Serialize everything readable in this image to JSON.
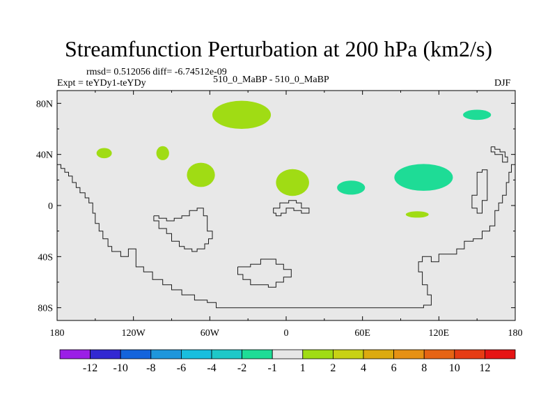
{
  "header": {
    "title": "Streamfunction Perturbation at 200 hPa (km2/s)",
    "stats": "rmsd= 0.512056 diff= -6.74512e-09",
    "expt": "Expt = teYDy1-teYDy",
    "case": "510_0_MaBP - 510_0_MaBP",
    "season": "DJF"
  },
  "chart_data": {
    "type": "heatmap",
    "projection": "cylindrical-equidistant",
    "xlim": [
      -180,
      180
    ],
    "ylim": [
      -90,
      90
    ],
    "x_ticks": [
      {
        "value": -180,
        "label": "180"
      },
      {
        "value": -120,
        "label": "120W"
      },
      {
        "value": -60,
        "label": "60W"
      },
      {
        "value": 0,
        "label": "0"
      },
      {
        "value": 60,
        "label": "60E"
      },
      {
        "value": 120,
        "label": "120E"
      },
      {
        "value": 180,
        "label": "180"
      }
    ],
    "y_ticks": [
      {
        "value": 80,
        "label": "80N"
      },
      {
        "value": 40,
        "label": "40N"
      },
      {
        "value": 0,
        "label": "0"
      },
      {
        "value": -40,
        "label": "40S"
      },
      {
        "value": -80,
        "label": "80S"
      }
    ],
    "background_color": "#e8e8e8",
    "colorbar": {
      "colors": [
        "#9b1ee6",
        "#3228d2",
        "#1464dc",
        "#1e96dc",
        "#19bede",
        "#1ec8c8",
        "#1edc96",
        "#e6e6e6",
        "#a0dc14",
        "#c8d214",
        "#dcaa0f",
        "#e69114",
        "#e66414",
        "#e63c14",
        "#e61414"
      ],
      "labels": [
        "-12",
        "-10",
        "-8",
        "-6",
        "-4",
        "-2",
        "-1",
        "1",
        "2",
        "4",
        "6",
        "8",
        "10",
        "12"
      ]
    },
    "anomalies": [
      {
        "lon": -35,
        "lat": 71,
        "rlon": 23,
        "rlat": 11,
        "value": 2,
        "color": "#a0dc14"
      },
      {
        "lon": -143,
        "lat": 41,
        "rlon": 6,
        "rlat": 4,
        "value": 2,
        "color": "#a0dc14"
      },
      {
        "lon": -97,
        "lat": 41,
        "rlon": 5,
        "rlat": 5.5,
        "value": 2,
        "color": "#a0dc14"
      },
      {
        "lon": -67,
        "lat": 24,
        "rlon": 11,
        "rlat": 9.5,
        "value": 2,
        "color": "#a0dc14"
      },
      {
        "lon": 5,
        "lat": 18,
        "rlon": 13,
        "rlat": 10.5,
        "value": 2,
        "color": "#a0dc14"
      },
      {
        "lon": 103,
        "lat": -7,
        "rlon": 9,
        "rlat": 2.5,
        "value": 2,
        "color": "#a0dc14"
      },
      {
        "lon": 150,
        "lat": 71,
        "rlon": 11,
        "rlat": 4,
        "value": -1,
        "color": "#1edc96"
      },
      {
        "lon": 51,
        "lat": 14,
        "rlon": 11,
        "rlat": 5.5,
        "value": -1,
        "color": "#1edc96"
      },
      {
        "lon": 108,
        "lat": 22,
        "rlon": 23,
        "rlat": 10.5,
        "value": -1,
        "color": "#1edc96"
      }
    ],
    "outlines": [
      [
        [
          -180,
          32
        ],
        [
          -177,
          32
        ],
        [
          -177,
          29
        ],
        [
          -174,
          29
        ],
        [
          -174,
          26
        ],
        [
          -171,
          26
        ],
        [
          -171,
          23
        ],
        [
          -168,
          23
        ],
        [
          -168,
          18
        ],
        [
          -165,
          18
        ],
        [
          -165,
          14
        ],
        [
          -162,
          14
        ],
        [
          -162,
          10
        ],
        [
          -158,
          10
        ],
        [
          -158,
          6
        ],
        [
          -155,
          6
        ],
        [
          -155,
          2
        ],
        [
          -152,
          2
        ],
        [
          -152,
          -6
        ],
        [
          -150,
          -6
        ],
        [
          -150,
          -14
        ],
        [
          -147,
          -14
        ],
        [
          -147,
          -20
        ],
        [
          -144,
          -20
        ],
        [
          -144,
          -26
        ],
        [
          -140,
          -26
        ],
        [
          -140,
          -32
        ],
        [
          -137,
          -32
        ],
        [
          -137,
          -36
        ],
        [
          -130,
          -36
        ],
        [
          -130,
          -40
        ],
        [
          -124,
          -40
        ],
        [
          -124,
          -34
        ],
        [
          -118,
          -34
        ],
        [
          -118,
          -40
        ],
        [
          -118,
          -48
        ],
        [
          -112,
          -48
        ],
        [
          -112,
          -52
        ],
        [
          -105,
          -52
        ],
        [
          -105,
          -58
        ],
        [
          -97,
          -58
        ],
        [
          -97,
          -62
        ],
        [
          -90,
          -62
        ],
        [
          -90,
          -66
        ],
        [
          -82,
          -66
        ],
        [
          -82,
          -70
        ],
        [
          -72,
          -70
        ],
        [
          -72,
          -74
        ],
        [
          -62,
          -74
        ],
        [
          -62,
          -76
        ],
        [
          -55,
          -76
        ],
        [
          -55,
          -80
        ],
        [
          -45,
          -80
        ],
        [
          -20,
          -80
        ],
        [
          20,
          -80
        ],
        [
          70,
          -80
        ],
        [
          108,
          -80
        ],
        [
          108,
          -78
        ],
        [
          114,
          -78
        ],
        [
          114,
          -70
        ],
        [
          111,
          -70
        ],
        [
          111,
          -62
        ],
        [
          107,
          -62
        ],
        [
          107,
          -52
        ],
        [
          104,
          -52
        ],
        [
          104,
          -44
        ],
        [
          107,
          -44
        ],
        [
          107,
          -40
        ],
        [
          114,
          -40
        ],
        [
          114,
          -44
        ],
        [
          120,
          -44
        ],
        [
          120,
          -38
        ],
        [
          134,
          -38
        ],
        [
          134,
          -34
        ],
        [
          140,
          -34
        ],
        [
          140,
          -28
        ],
        [
          147,
          -28
        ],
        [
          147,
          -26
        ],
        [
          154,
          -26
        ],
        [
          154,
          -20
        ],
        [
          160,
          -20
        ],
        [
          160,
          -16
        ],
        [
          164,
          -16
        ],
        [
          164,
          -4
        ],
        [
          167,
          -4
        ],
        [
          167,
          2
        ],
        [
          170,
          2
        ],
        [
          170,
          8
        ],
        [
          173,
          8
        ],
        [
          173,
          18
        ],
        [
          175,
          18
        ],
        [
          175,
          26
        ],
        [
          177,
          26
        ],
        [
          177,
          32
        ],
        [
          180,
          32
        ]
      ],
      [
        [
          -104,
          -8
        ],
        [
          -104,
          -12
        ],
        [
          -100,
          -12
        ],
        [
          -100,
          -18
        ],
        [
          -94,
          -18
        ],
        [
          -94,
          -22
        ],
        [
          -90,
          -22
        ],
        [
          -90,
          -28
        ],
        [
          -84,
          -28
        ],
        [
          -84,
          -32
        ],
        [
          -80,
          -32
        ],
        [
          -80,
          -34
        ],
        [
          -74,
          -34
        ],
        [
          -74,
          -36
        ],
        [
          -70,
          -36
        ],
        [
          -70,
          -34
        ],
        [
          -64,
          -34
        ],
        [
          -64,
          -30
        ],
        [
          -61,
          -30
        ],
        [
          -61,
          -26
        ],
        [
          -58,
          -26
        ],
        [
          -58,
          -20
        ],
        [
          -62,
          -20
        ],
        [
          -62,
          -8
        ],
        [
          -65,
          -8
        ],
        [
          -65,
          -2
        ],
        [
          -70,
          -2
        ],
        [
          -70,
          -4
        ],
        [
          -76,
          -4
        ],
        [
          -76,
          -8
        ],
        [
          -82,
          -8
        ],
        [
          -82,
          -10
        ],
        [
          -88,
          -10
        ],
        [
          -88,
          -12
        ],
        [
          -94,
          -12
        ],
        [
          -94,
          -10
        ],
        [
          -100,
          -10
        ],
        [
          -100,
          -8
        ],
        [
          -104,
          -8
        ]
      ],
      [
        [
          -10,
          -6
        ],
        [
          -10,
          -2
        ],
        [
          -5,
          -2
        ],
        [
          -5,
          2
        ],
        [
          2,
          2
        ],
        [
          2,
          4
        ],
        [
          8,
          4
        ],
        [
          8,
          2
        ],
        [
          12,
          2
        ],
        [
          12,
          -2
        ],
        [
          18,
          -2
        ],
        [
          18,
          -6
        ],
        [
          12,
          -6
        ],
        [
          12,
          -4
        ],
        [
          6,
          -4
        ],
        [
          6,
          -2
        ],
        [
          0,
          -2
        ],
        [
          0,
          -6
        ],
        [
          -4,
          -6
        ],
        [
          -4,
          -8
        ],
        [
          -8,
          -8
        ],
        [
          -8,
          -6
        ],
        [
          -10,
          -6
        ]
      ],
      [
        [
          -38,
          -48
        ],
        [
          -38,
          -54
        ],
        [
          -34,
          -54
        ],
        [
          -34,
          -58
        ],
        [
          -28,
          -58
        ],
        [
          -28,
          -62
        ],
        [
          -14,
          -62
        ],
        [
          -14,
          -64
        ],
        [
          -8,
          -64
        ],
        [
          -8,
          -60
        ],
        [
          -2,
          -60
        ],
        [
          -2,
          -56
        ],
        [
          4,
          -56
        ],
        [
          4,
          -50
        ],
        [
          -2,
          -50
        ],
        [
          -2,
          -46
        ],
        [
          -8,
          -46
        ],
        [
          -8,
          -42
        ],
        [
          -20,
          -42
        ],
        [
          -20,
          -46
        ],
        [
          -28,
          -46
        ],
        [
          -28,
          -48
        ],
        [
          -38,
          -48
        ]
      ],
      [
        [
          150,
          16
        ],
        [
          150,
          8
        ],
        [
          146,
          8
        ],
        [
          146,
          -2
        ],
        [
          150,
          -2
        ],
        [
          150,
          -6
        ],
        [
          154,
          -6
        ],
        [
          154,
          4
        ],
        [
          158,
          4
        ],
        [
          158,
          28
        ],
        [
          154,
          28
        ],
        [
          154,
          26
        ],
        [
          150,
          26
        ],
        [
          150,
          16
        ]
      ],
      [
        [
          161,
          46
        ],
        [
          161,
          42
        ],
        [
          164,
          42
        ],
        [
          164,
          40
        ],
        [
          170,
          40
        ],
        [
          170,
          34
        ],
        [
          174,
          34
        ],
        [
          174,
          38
        ],
        [
          172,
          38
        ],
        [
          172,
          42
        ],
        [
          168,
          42
        ],
        [
          168,
          44
        ],
        [
          164,
          44
        ],
        [
          164,
          46
        ],
        [
          161,
          46
        ]
      ]
    ]
  }
}
